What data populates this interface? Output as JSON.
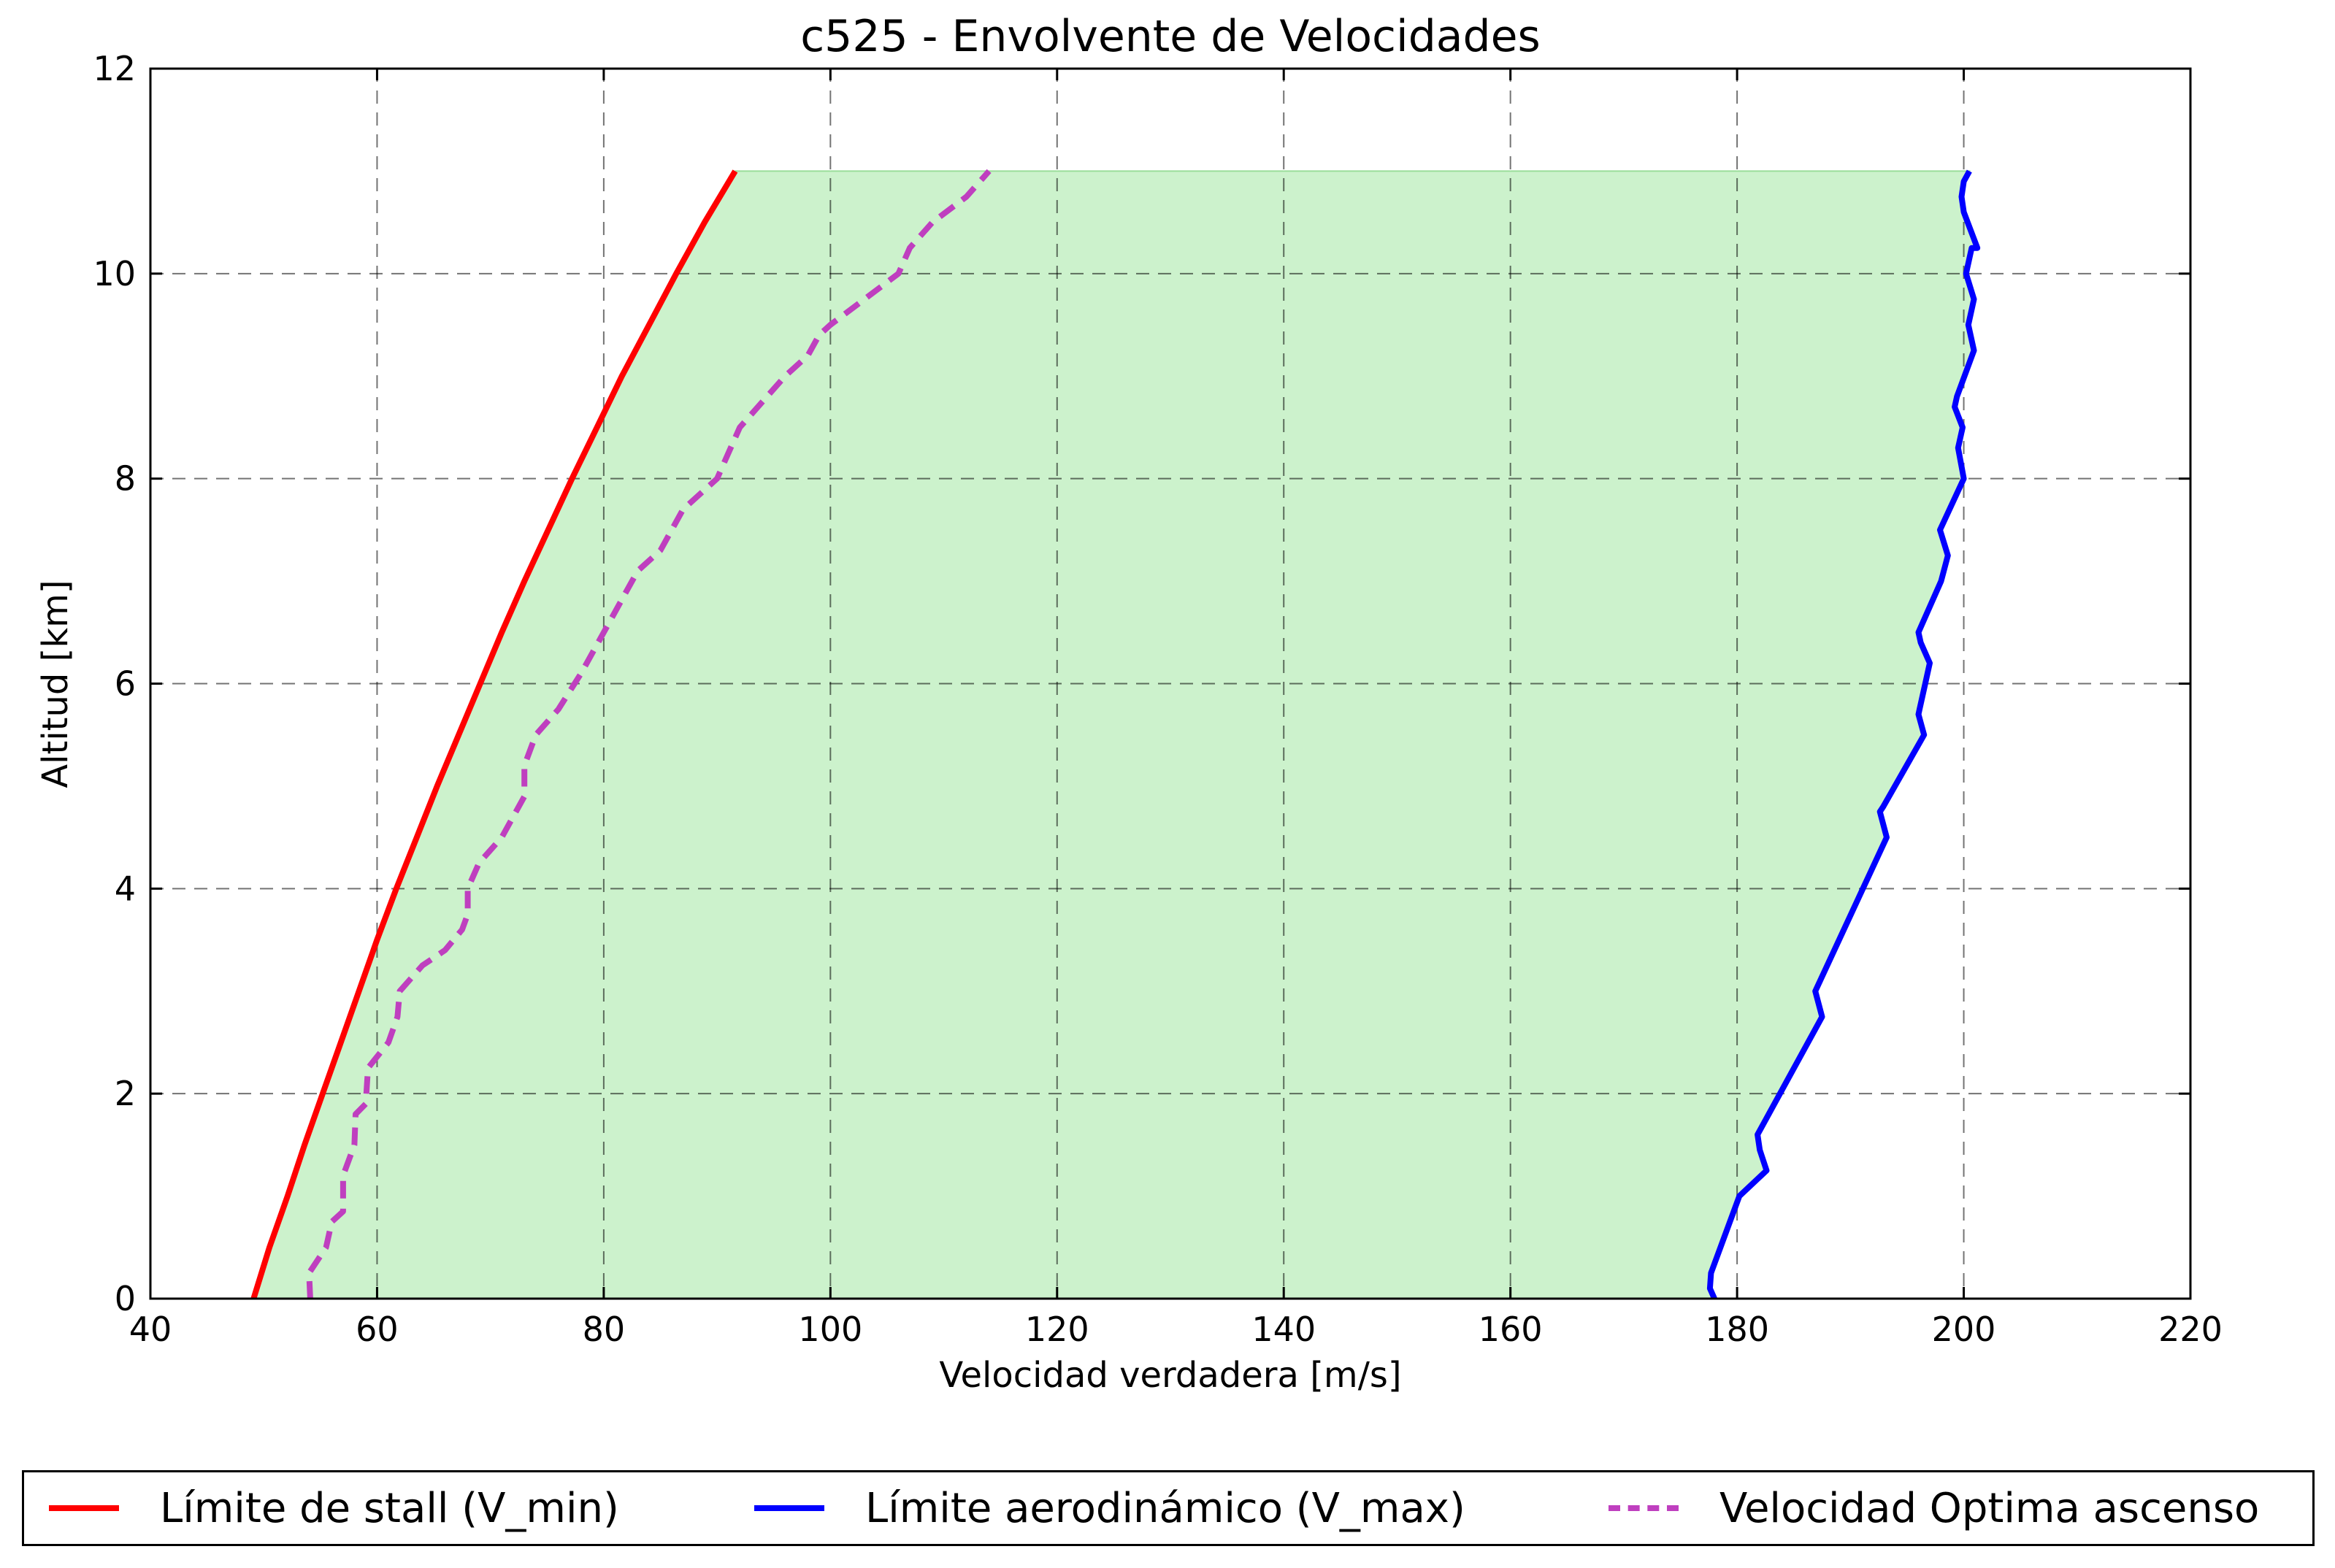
{
  "chart_data": {
    "type": "line",
    "title": "c525 - Envolvente de Velocidades",
    "xlabel": "Velocidad verdadera [m/s]",
    "ylabel": "Altitud [km]",
    "xlim": [
      40,
      220
    ],
    "ylim": [
      0,
      12
    ],
    "xticks": [
      40,
      60,
      80,
      100,
      120,
      140,
      160,
      180,
      200,
      220
    ],
    "yticks": [
      0,
      2,
      4,
      6,
      8,
      10,
      12
    ],
    "grid": true,
    "legend_position": "bottom",
    "fill_between": {
      "from_series": "Límite de stall (V_min)",
      "to_series": "Límite aerodinámico (V_max)",
      "color": "#ccf2cc",
      "edge": "#99dd99"
    },
    "series": [
      {
        "name": "Límite de stall (V_min)",
        "color": "#ff0000",
        "style": "solid",
        "points": [
          [
            49.1,
            0
          ],
          [
            50.5,
            0.5
          ],
          [
            52.1,
            1
          ],
          [
            53.6,
            1.5
          ],
          [
            55.2,
            2
          ],
          [
            56.8,
            2.5
          ],
          [
            58.4,
            3
          ],
          [
            60.0,
            3.5
          ],
          [
            61.7,
            4
          ],
          [
            63.5,
            4.5
          ],
          [
            65.3,
            5
          ],
          [
            67.2,
            5.5
          ],
          [
            69.1,
            6
          ],
          [
            71.0,
            6.5
          ],
          [
            73.0,
            7
          ],
          [
            75.1,
            7.5
          ],
          [
            77.2,
            8
          ],
          [
            79.4,
            8.5
          ],
          [
            81.6,
            9
          ],
          [
            84.0,
            9.5
          ],
          [
            86.4,
            10
          ],
          [
            88.9,
            10.5
          ],
          [
            91.6,
            11
          ]
        ]
      },
      {
        "name": "Límite aerodinámico (V_max)",
        "color": "#0000ff",
        "style": "solid",
        "points": [
          [
            178.0,
            0
          ],
          [
            177.6,
            0.1
          ],
          [
            177.7,
            0.25
          ],
          [
            180.2,
            1
          ],
          [
            182.6,
            1.25
          ],
          [
            182.0,
            1.45
          ],
          [
            181.8,
            1.6
          ],
          [
            187.5,
            2.75
          ],
          [
            186.9,
            3.0
          ],
          [
            193.2,
            4.5
          ],
          [
            192.6,
            4.75
          ],
          [
            192.9,
            4.8
          ],
          [
            196.5,
            5.5
          ],
          [
            196.0,
            5.7
          ],
          [
            196.1,
            5.75
          ],
          [
            196.6,
            6.0
          ],
          [
            197.0,
            6.2
          ],
          [
            196.2,
            6.4
          ],
          [
            196.0,
            6.5
          ],
          [
            198.0,
            7.0
          ],
          [
            198.6,
            7.25
          ],
          [
            197.9,
            7.5
          ],
          [
            200.0,
            8.0
          ],
          [
            199.5,
            8.3
          ],
          [
            199.9,
            8.5
          ],
          [
            199.2,
            8.7
          ],
          [
            199.4,
            8.8
          ],
          [
            200.9,
            9.25
          ],
          [
            200.4,
            9.5
          ],
          [
            200.9,
            9.75
          ],
          [
            200.2,
            10.0
          ],
          [
            200.7,
            10.25
          ],
          [
            201.2,
            10.25
          ],
          [
            200.0,
            10.6
          ],
          [
            199.8,
            10.75
          ],
          [
            200.0,
            10.9
          ],
          [
            200.5,
            11.0
          ]
        ]
      },
      {
        "name": "Velocidad Optima ascenso",
        "color": "#bf3fbf",
        "style": "dashed",
        "points": [
          [
            54.1,
            0
          ],
          [
            54.0,
            0.25
          ],
          [
            55.5,
            0.5
          ],
          [
            56.0,
            0.75
          ],
          [
            57.0,
            0.85
          ],
          [
            57.0,
            1.0
          ],
          [
            57.0,
            1.2
          ],
          [
            58.0,
            1.5
          ],
          [
            58.1,
            1.8
          ],
          [
            59.0,
            1.9
          ],
          [
            59.2,
            2.25
          ],
          [
            61.0,
            2.5
          ],
          [
            61.8,
            2.75
          ],
          [
            62.0,
            3.0
          ],
          [
            64.0,
            3.25
          ],
          [
            66.0,
            3.4
          ],
          [
            67.5,
            3.6
          ],
          [
            68.0,
            3.75
          ],
          [
            68.0,
            4.0
          ],
          [
            69.0,
            4.25
          ],
          [
            71.0,
            4.5
          ],
          [
            73.0,
            4.9
          ],
          [
            73.0,
            5.2
          ],
          [
            74.0,
            5.5
          ],
          [
            76.0,
            5.75
          ],
          [
            78.0,
            6.1
          ],
          [
            80.0,
            6.5
          ],
          [
            82.0,
            6.9
          ],
          [
            83.0,
            7.1
          ],
          [
            85.0,
            7.3
          ],
          [
            86.0,
            7.5
          ],
          [
            87.0,
            7.7
          ],
          [
            89.0,
            7.9
          ],
          [
            90.0,
            8.0
          ],
          [
            91.0,
            8.25
          ],
          [
            92.0,
            8.5
          ],
          [
            94.0,
            8.75
          ],
          [
            96.0,
            9.0
          ],
          [
            98.0,
            9.2
          ],
          [
            99.0,
            9.4
          ],
          [
            100.0,
            9.5
          ],
          [
            103.0,
            9.75
          ],
          [
            106.0,
            10.0
          ],
          [
            107.0,
            10.25
          ],
          [
            109.0,
            10.5
          ],
          [
            112.0,
            10.75
          ],
          [
            114.0,
            11.0
          ]
        ]
      }
    ]
  }
}
